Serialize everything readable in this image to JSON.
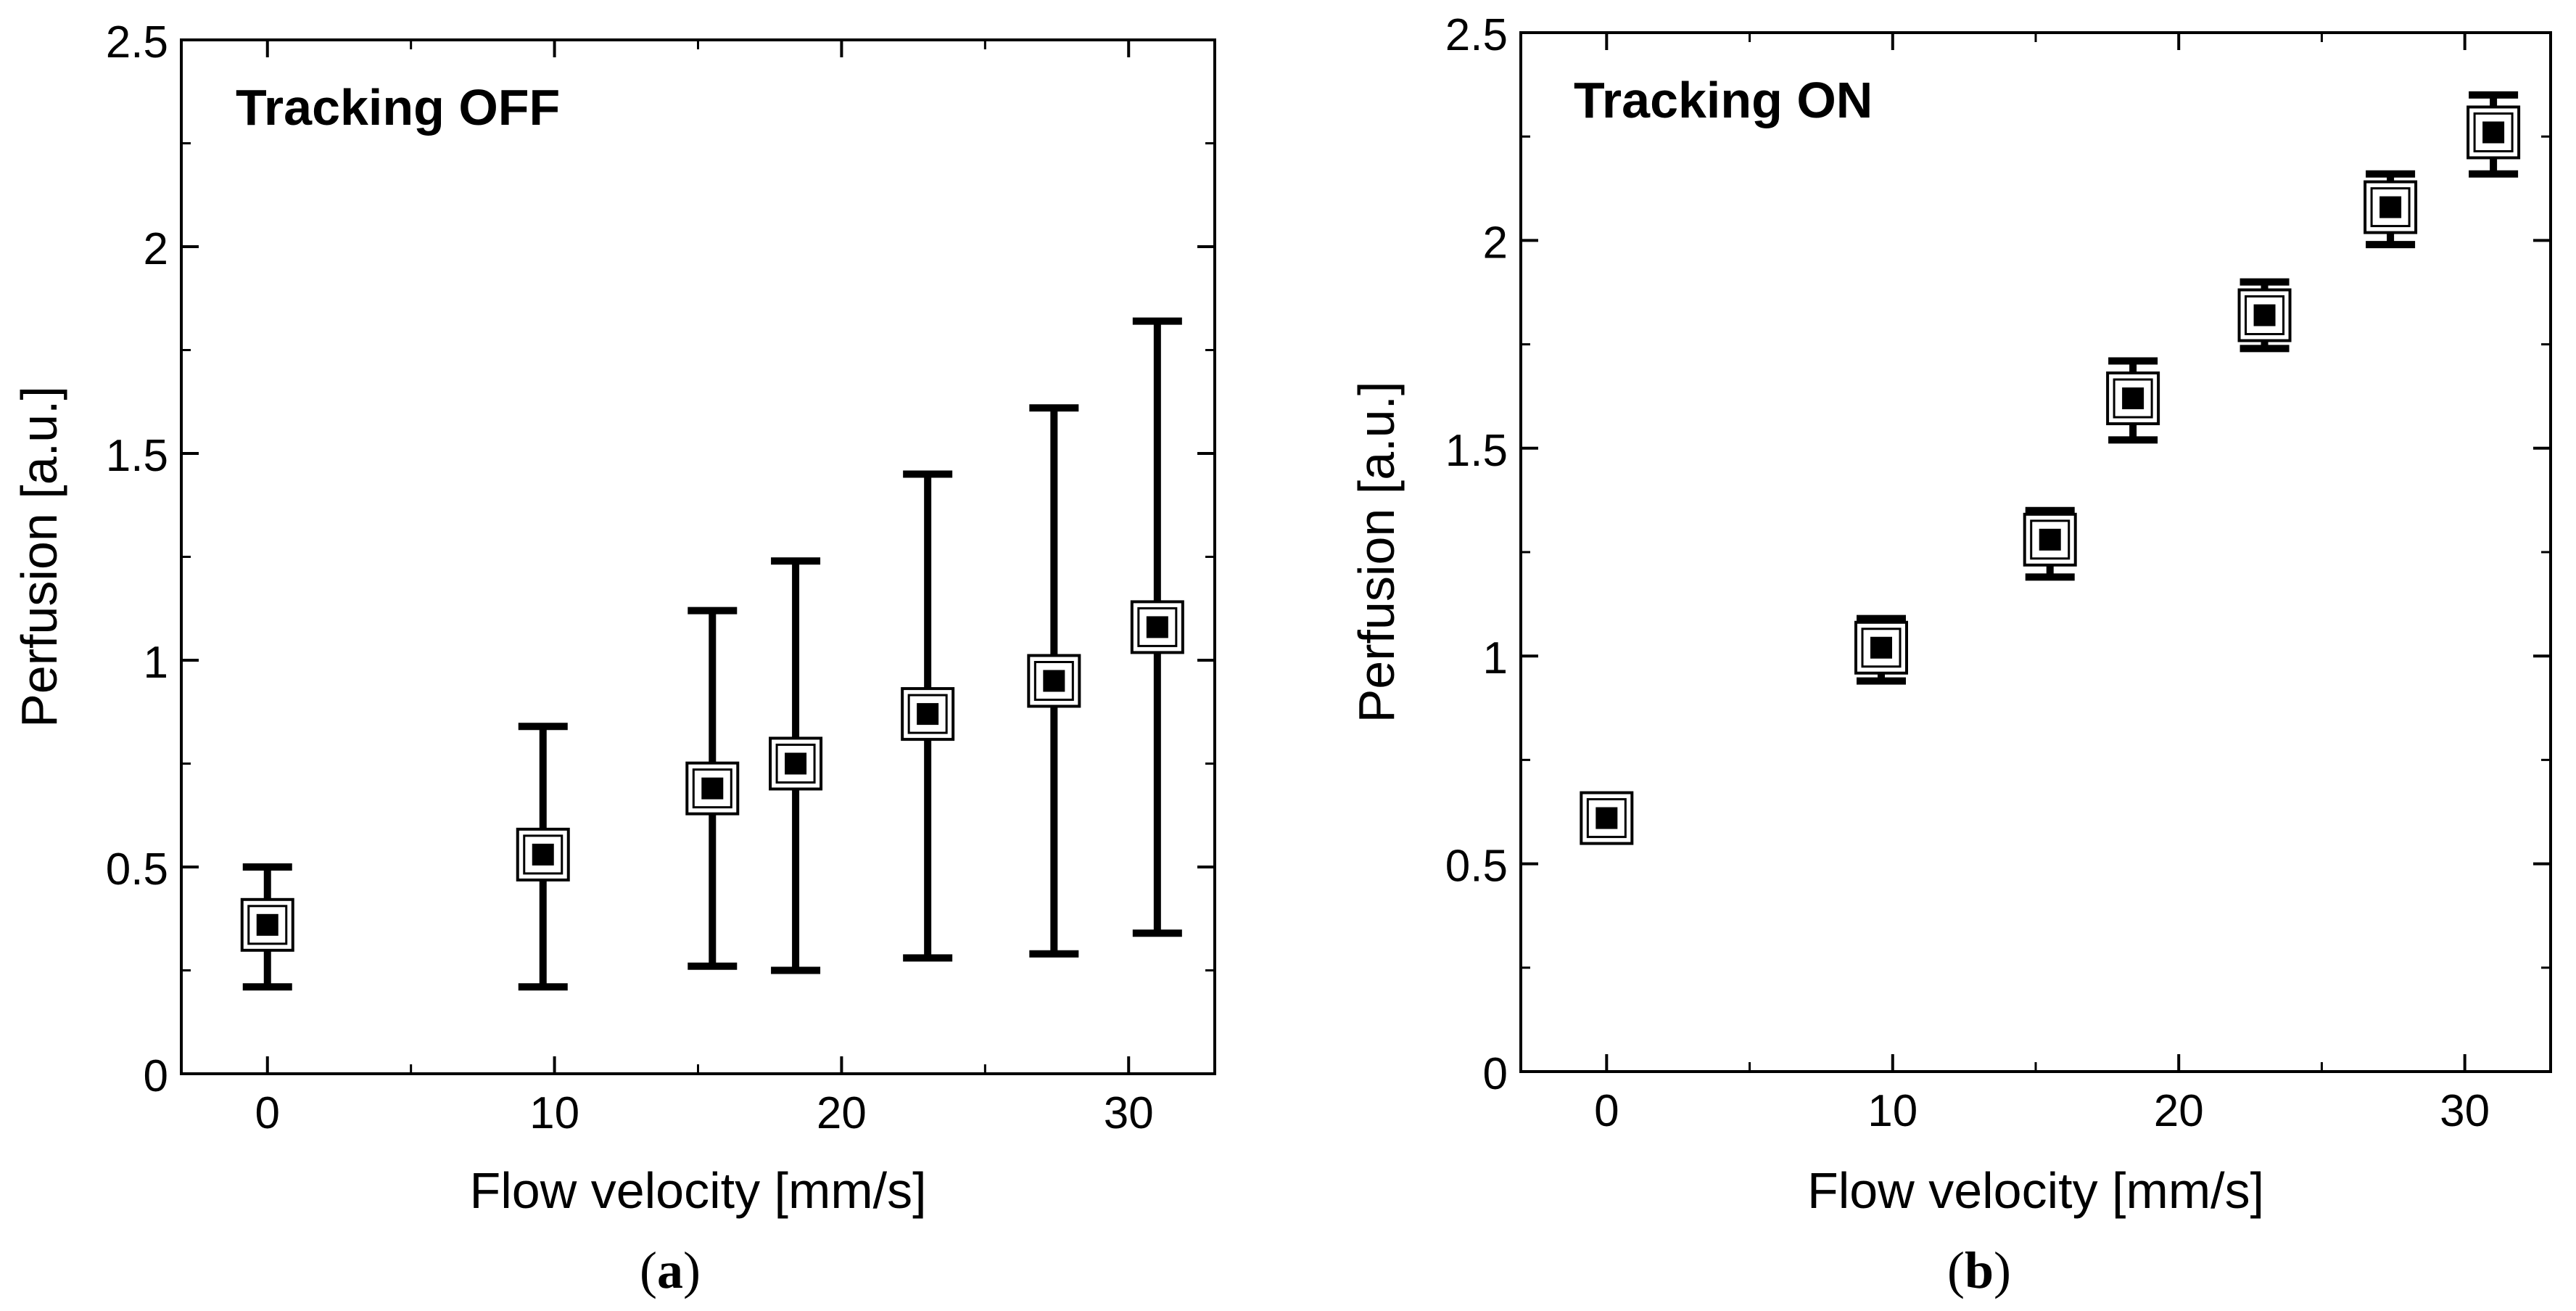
{
  "chart_data": [
    {
      "type": "scatter",
      "panel_label": "(a)",
      "panel_letter": "a",
      "title": "Tracking OFF",
      "xlabel": "Flow velocity [mm/s]",
      "ylabel": "Perfusion [a.u.]",
      "xlim": [
        -3,
        33
      ],
      "ylim": [
        0,
        2.5
      ],
      "xticks": [
        0,
        10,
        20,
        30
      ],
      "yticks": [
        0,
        0.5,
        1,
        1.5,
        2,
        2.5
      ],
      "grid": false,
      "series": [
        {
          "name": "Tracking OFF",
          "x": [
            0,
            9.6,
            15.5,
            18.4,
            23.0,
            27.4,
            31.0
          ],
          "y": [
            0.36,
            0.53,
            0.69,
            0.75,
            0.87,
            0.95,
            1.08
          ],
          "err_low": [
            0.21,
            0.21,
            0.26,
            0.25,
            0.28,
            0.29,
            0.34
          ],
          "err_high": [
            0.5,
            0.84,
            1.12,
            1.24,
            1.45,
            1.61,
            1.82
          ]
        }
      ]
    },
    {
      "type": "scatter",
      "panel_label": "(b)",
      "panel_letter": "b",
      "title": "Tracking ON",
      "xlabel": "Flow velocity [mm/s]",
      "ylabel": "Perfusion [a.u.]",
      "xlim": [
        -3,
        33
      ],
      "ylim": [
        0,
        2.5
      ],
      "xticks": [
        0,
        10,
        20,
        30
      ],
      "yticks": [
        0,
        0.5,
        1,
        1.5,
        2,
        2.5
      ],
      "grid": false,
      "series": [
        {
          "name": "Tracking ON",
          "x": [
            0,
            9.6,
            15.5,
            18.4,
            23.0,
            27.4,
            31.0
          ],
          "y": [
            0.61,
            1.02,
            1.28,
            1.62,
            1.82,
            2.08,
            2.26
          ],
          "err_low": [
            0.59,
            0.94,
            1.19,
            1.52,
            1.74,
            1.99,
            2.16
          ],
          "err_high": [
            0.63,
            1.09,
            1.35,
            1.71,
            1.9,
            2.16,
            2.35
          ]
        }
      ]
    }
  ]
}
